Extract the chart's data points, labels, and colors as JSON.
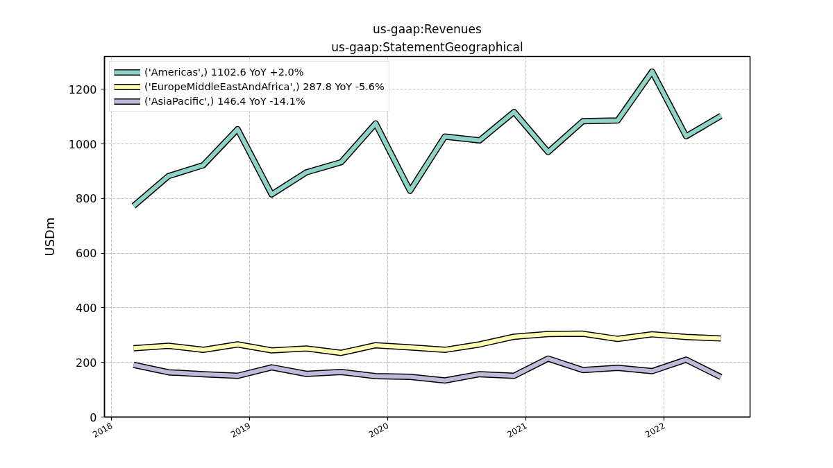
{
  "chart_data": {
    "type": "line",
    "title": "us-gaap:Revenues",
    "subtitle": "us-gaap:StatementGeographical",
    "ylabel": "USDm",
    "x": [
      "2018-02-28",
      "2018-05-31",
      "2018-08-31",
      "2018-11-30",
      "2019-02-28",
      "2019-05-31",
      "2019-08-31",
      "2019-11-30",
      "2020-02-29",
      "2020-05-31",
      "2020-08-31",
      "2020-11-30",
      "2021-02-28",
      "2021-05-31",
      "2021-08-31",
      "2021-11-30",
      "2022-02-28",
      "2022-05-31"
    ],
    "series": [
      {
        "name": "('Americas',) 1102.6 YoY +2.0%",
        "color": "#8dd3c7",
        "values": [
          773,
          882,
          922,
          1054,
          815,
          896,
          933,
          1075,
          828,
          1027,
          1013,
          1117,
          970,
          1083,
          1086,
          1265,
          1028,
          1102.6
        ]
      },
      {
        "name": "('EuropeMiddleEastAndAfrica',) 287.8 YoY -5.6%",
        "color": "#ffffb3",
        "values": [
          252,
          261,
          246,
          266,
          244,
          251,
          235,
          263,
          255,
          246,
          266,
          294,
          304,
          305,
          286,
          303,
          293,
          287.8
        ]
      },
      {
        "name": "('AsiaPacific',) 146.4 YoY -14.1%",
        "color": "#bebada",
        "values": [
          191,
          164,
          157,
          151,
          182,
          158,
          165,
          150,
          147,
          134,
          157,
          151,
          214,
          172,
          180,
          168,
          210,
          146.4
        ]
      }
    ],
    "xlim": [
      "2017-12-13",
      "2022-08-16"
    ],
    "ylim": [
      0,
      1320
    ],
    "xticks": [
      "2018",
      "2019",
      "2020",
      "2021",
      "2022"
    ],
    "yticks": [
      0,
      200,
      400,
      600,
      800,
      1000,
      1200
    ],
    "grid": true,
    "legend": "top left",
    "line_style": "solid"
  }
}
